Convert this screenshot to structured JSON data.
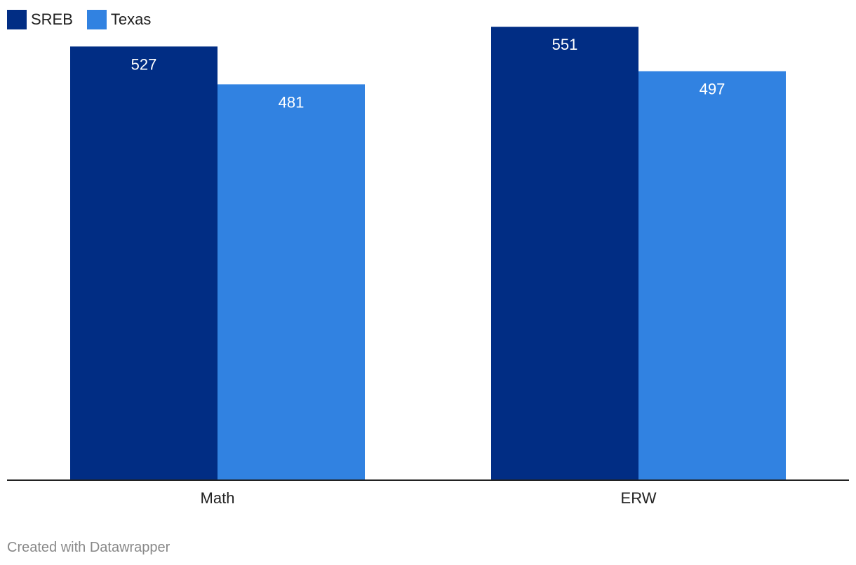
{
  "legend": {
    "items": [
      {
        "label": "SREB",
        "color": "#012d84"
      },
      {
        "label": "Texas",
        "color": "#3182e1"
      }
    ]
  },
  "chart_data": {
    "type": "bar",
    "categories": [
      "Math",
      "ERW"
    ],
    "series": [
      {
        "name": "SREB",
        "values": [
          527,
          551
        ],
        "color": "#012d84"
      },
      {
        "name": "Texas",
        "values": [
          481,
          497
        ],
        "color": "#3182e1"
      }
    ],
    "title": "",
    "xlabel": "",
    "ylabel": "",
    "ylim": [
      0,
      575
    ],
    "grid": false,
    "legend_position": "top-left",
    "value_labels": true
  },
  "footer": {
    "credit": "Created with Datawrapper"
  }
}
